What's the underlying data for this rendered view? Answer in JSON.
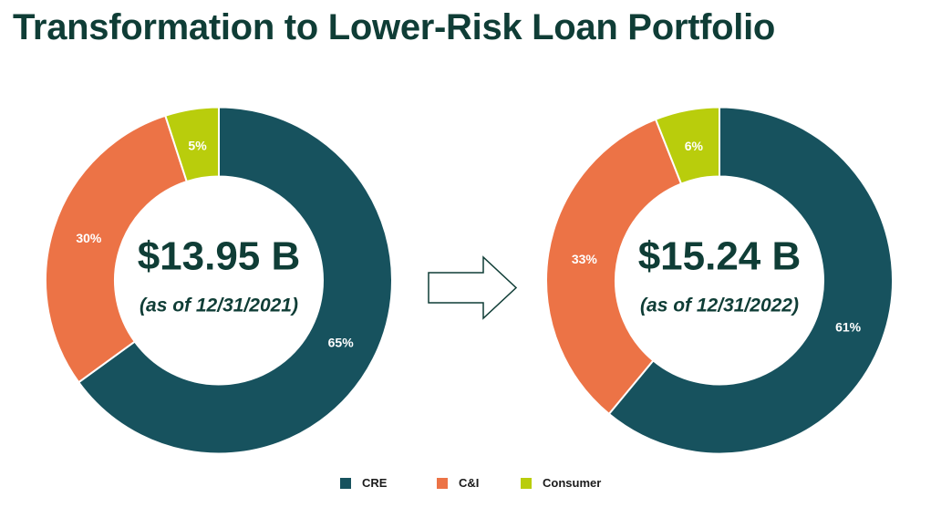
{
  "title": "Transformation to Lower-Risk Loan Portfolio",
  "colors": {
    "CRE": "#17525e",
    "C&I": "#ec7346",
    "Consumer": "#b9cd0c"
  },
  "chart_data": [
    {
      "type": "pie",
      "center_text": "$13.95 B",
      "sub_text": "(as of 12/31/2021)",
      "slices": [
        {
          "name": "CRE",
          "value": 65,
          "label": "65%"
        },
        {
          "name": "C&I",
          "value": 30,
          "label": "30%"
        },
        {
          "name": "Consumer",
          "value": 5,
          "label": "5%"
        }
      ]
    },
    {
      "type": "pie",
      "center_text": "$15.24 B",
      "sub_text": "(as of 12/31/2022)",
      "slices": [
        {
          "name": "CRE",
          "value": 61,
          "label": "61%"
        },
        {
          "name": "C&I",
          "value": 33,
          "label": "33%"
        },
        {
          "name": "Consumer",
          "value": 6,
          "label": "6%"
        }
      ]
    }
  ],
  "legend": [
    "CRE",
    "C&I",
    "Consumer"
  ]
}
